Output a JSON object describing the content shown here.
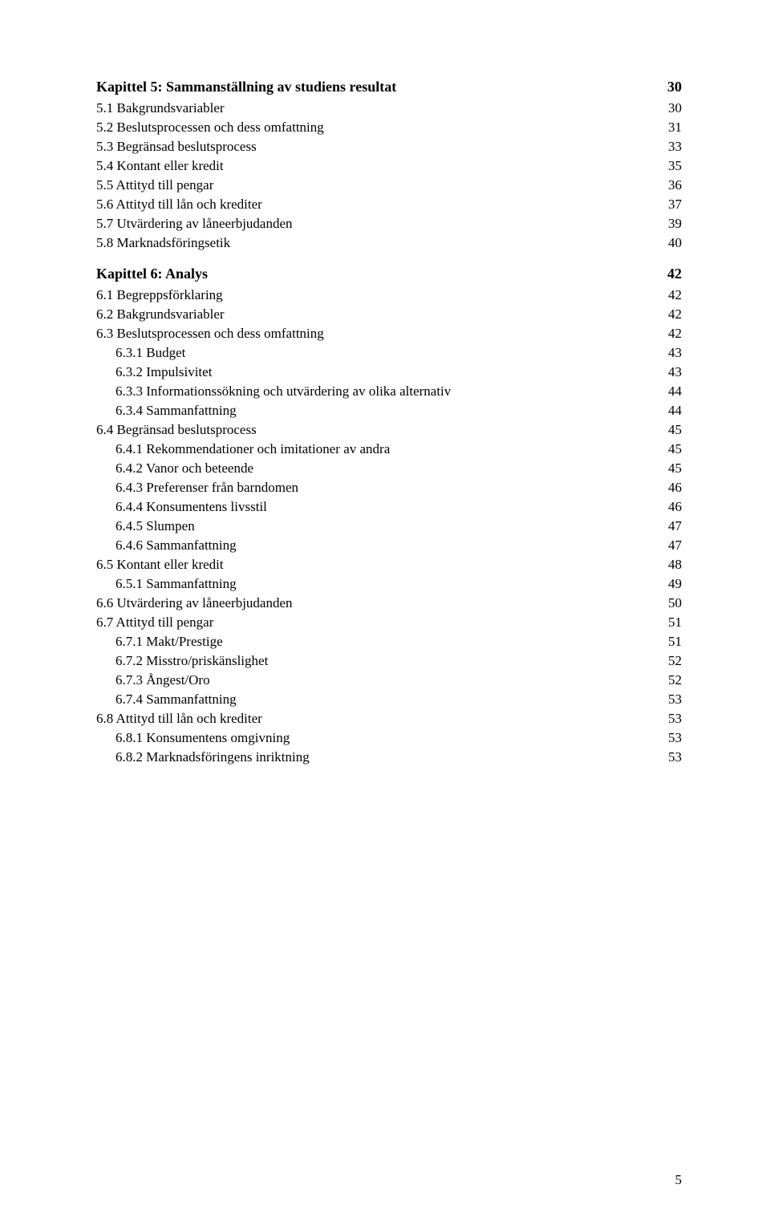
{
  "toc": [
    {
      "level": "heading",
      "label": "Kapittel 5: Sammanställning av studiens resultat",
      "page": "30"
    },
    {
      "level": 1,
      "label": "5.1 Bakgrundsvariabler",
      "page": "30"
    },
    {
      "level": 1,
      "label": "5.2 Beslutsprocessen och dess omfattning",
      "page": "31"
    },
    {
      "level": 1,
      "label": "5.3 Begränsad beslutsprocess",
      "page": "33"
    },
    {
      "level": 1,
      "label": "5.4 Kontant eller kredit",
      "page": "35"
    },
    {
      "level": 1,
      "label": "5.5 Attityd till pengar",
      "page": "36"
    },
    {
      "level": 1,
      "label": "5.6 Attityd till lån och krediter",
      "page": "37"
    },
    {
      "level": 1,
      "label": "5.7 Utvärdering av låneerbjudanden",
      "page": "39"
    },
    {
      "level": 1,
      "label": "5.8 Marknadsföringsetik",
      "page": "40"
    },
    {
      "level": "heading",
      "label": "Kapittel 6: Analys",
      "page": "42"
    },
    {
      "level": 1,
      "label": "6.1 Begreppsförklaring",
      "page": "42"
    },
    {
      "level": 1,
      "label": "6.2 Bakgrundsvariabler",
      "page": "42"
    },
    {
      "level": 1,
      "label": "6.3 Beslutsprocessen och dess omfattning",
      "page": "42"
    },
    {
      "level": 2,
      "label": "6.3.1 Budget",
      "page": "43"
    },
    {
      "level": 2,
      "label": "6.3.2 Impulsivitet",
      "page": "43"
    },
    {
      "level": 2,
      "label": "6.3.3 Informationssökning och utvärdering av olika alternativ",
      "page": "44"
    },
    {
      "level": 2,
      "label": "6.3.4 Sammanfattning",
      "page": "44"
    },
    {
      "level": 1,
      "label": "6.4 Begränsad beslutsprocess",
      "page": "45"
    },
    {
      "level": 2,
      "label": "6.4.1 Rekommendationer och imitationer av andra",
      "page": "45"
    },
    {
      "level": 2,
      "label": "6.4.2 Vanor och beteende",
      "page": "45"
    },
    {
      "level": 2,
      "label": "6.4.3 Preferenser från barndomen",
      "page": "46"
    },
    {
      "level": 2,
      "label": "6.4.4 Konsumentens livsstil",
      "page": "46"
    },
    {
      "level": 2,
      "label": "6.4.5 Slumpen",
      "page": "47"
    },
    {
      "level": 2,
      "label": "6.4.6 Sammanfattning",
      "page": "47"
    },
    {
      "level": 1,
      "label": "6.5 Kontant eller kredit",
      "page": "48"
    },
    {
      "level": 2,
      "label": "6.5.1 Sammanfattning",
      "page": "49"
    },
    {
      "level": 1,
      "label": "6.6 Utvärdering av låneerbjudanden",
      "page": "50"
    },
    {
      "level": 1,
      "label": "6.7 Attityd till pengar",
      "page": "51"
    },
    {
      "level": 2,
      "label": "6.7.1 Makt/Prestige",
      "page": "51"
    },
    {
      "level": 2,
      "label": "6.7.2 Misstro/priskänslighet",
      "page": "52"
    },
    {
      "level": 2,
      "label": "6.7.3 Ångest/Oro",
      "page": "52"
    },
    {
      "level": 2,
      "label": "6.7.4 Sammanfattning",
      "page": "53"
    },
    {
      "level": 1,
      "label": "6.8 Attityd till lån och krediter",
      "page": "53"
    },
    {
      "level": 2,
      "label": "6.8.1 Konsumentens omgivning",
      "page": "53"
    },
    {
      "level": 2,
      "label": "6.8.2 Marknadsföringens inriktning",
      "page": "53"
    }
  ],
  "footer": {
    "page_number": "5"
  }
}
